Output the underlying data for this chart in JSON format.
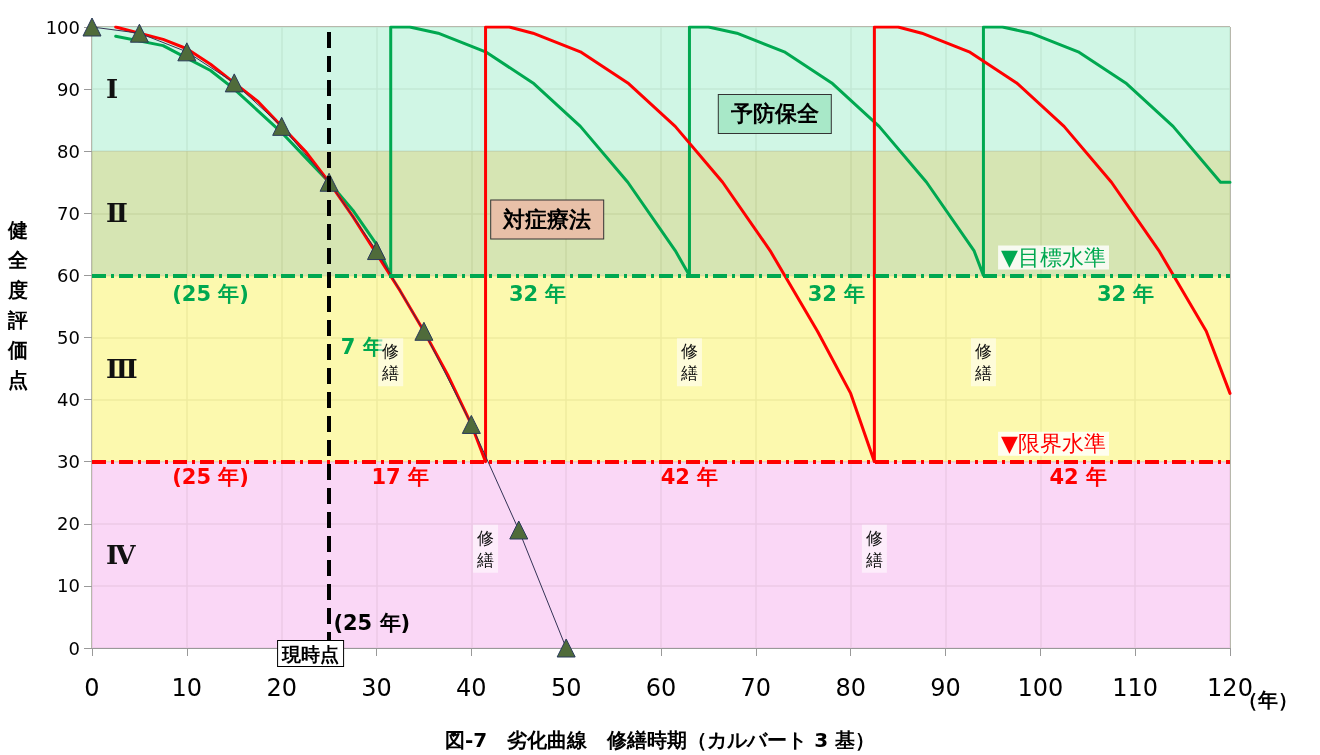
{
  "chart_data": {
    "type": "line",
    "title": "図-7　劣化曲線　修繕時期（カルバート 3 基）",
    "xlabel": "（年）",
    "ylabel": "健全度評価点",
    "xlim": [
      0,
      120
    ],
    "ylim": [
      0,
      100
    ],
    "xticks": [
      0,
      10,
      20,
      30,
      40,
      50,
      60,
      70,
      80,
      90,
      100,
      110,
      120
    ],
    "yticks": [
      0,
      10,
      20,
      30,
      40,
      50,
      60,
      70,
      80,
      90,
      100
    ],
    "grid": true,
    "series": [
      {
        "type": "line",
        "color": "#00a850",
        "line_style": "solid",
        "marker": "none",
        "x": [
          2.5,
          5,
          7.5,
          10,
          12.5,
          15,
          17.5,
          20,
          22.5,
          25,
          27.5,
          30,
          31.5,
          31.5,
          33.5,
          36.5,
          41.5,
          46.5,
          51.5,
          56.5,
          61.5,
          63,
          63,
          65,
          68,
          73,
          78,
          83,
          88,
          93,
          94,
          94,
          96,
          99,
          104,
          109,
          114,
          119,
          120
        ],
        "values": [
          98.5,
          null,
          97,
          95,
          93,
          90,
          86.5,
          83,
          79,
          75,
          70.5,
          65,
          60,
          100,
          100,
          99,
          96,
          91,
          84,
          75,
          64,
          60,
          100,
          100,
          99,
          96,
          91,
          84,
          75,
          64,
          60,
          100,
          100,
          99,
          96,
          91,
          84,
          75,
          75
        ]
      },
      {
        "type": "line",
        "color": "#ff0000",
        "line_style": "solid",
        "marker": "none",
        "x": [
          2.5,
          5,
          7.5,
          10,
          12.5,
          15,
          17.5,
          20,
          22.5,
          25,
          27.5,
          30,
          32.5,
          35,
          37.5,
          40,
          41.5,
          41.5,
          44,
          46.5,
          51.5,
          56.5,
          61.5,
          66.5,
          71.5,
          76.5,
          80,
          82.5,
          82.5,
          85,
          87.5,
          92.5,
          97.5,
          102.5,
          107.5,
          112.5,
          117.5,
          120
        ],
        "values": [
          100,
          99,
          98,
          96.5,
          94,
          91,
          88,
          84,
          80,
          75,
          69.5,
          null,
          57.5,
          51,
          44,
          36,
          30,
          100,
          100,
          99,
          96,
          91,
          84,
          75,
          64,
          51,
          41,
          30,
          100,
          100,
          99,
          96,
          91,
          84,
          75,
          64,
          51,
          41
        ]
      },
      {
        "type": "line",
        "color": "#4f6b3a",
        "line_style": "solid",
        "marker": "triangle",
        "x": [
          0,
          5,
          10,
          15,
          20,
          25,
          30,
          35,
          40,
          45,
          50
        ],
        "values": [
          100,
          99,
          96,
          91,
          84,
          75,
          64,
          51,
          36,
          19,
          0
        ]
      }
    ],
    "bands": [
      {
        "axis": "y",
        "from": 80,
        "to": 100,
        "label": "Ⅰ",
        "color": "#c8f5e0"
      },
      {
        "axis": "y",
        "from": 60,
        "to": 80,
        "label": "Ⅱ",
        "color": "#cfe0a6"
      },
      {
        "axis": "y",
        "from": 30,
        "to": 60,
        "label": "Ⅲ",
        "color": "#fbf8a0"
      },
      {
        "axis": "y",
        "from": 0,
        "to": 30,
        "label": "Ⅳ",
        "color": "#f9d0f4"
      }
    ],
    "ref_lines": [
      {
        "axis": "y",
        "value": 60,
        "label": "▼目標水準",
        "color": "#00a850",
        "line_style": "dashed"
      },
      {
        "axis": "y",
        "value": 30,
        "label": "▼限界水準",
        "color": "#ff0000",
        "line_style": "dashed"
      },
      {
        "axis": "x",
        "value": 25,
        "label": "現時点",
        "color": "#000000",
        "line_style": "dashed"
      }
    ],
    "annotations": [
      "(25 年)",
      "7 年",
      "32 年",
      "32 年",
      "32 年",
      "修繕",
      "修繕",
      "修繕",
      "(25 年)",
      "17 年",
      "42 年",
      "42 年",
      "修繕",
      "修繕",
      "(25 年)",
      "予防保全",
      "対症療法"
    ]
  }
}
